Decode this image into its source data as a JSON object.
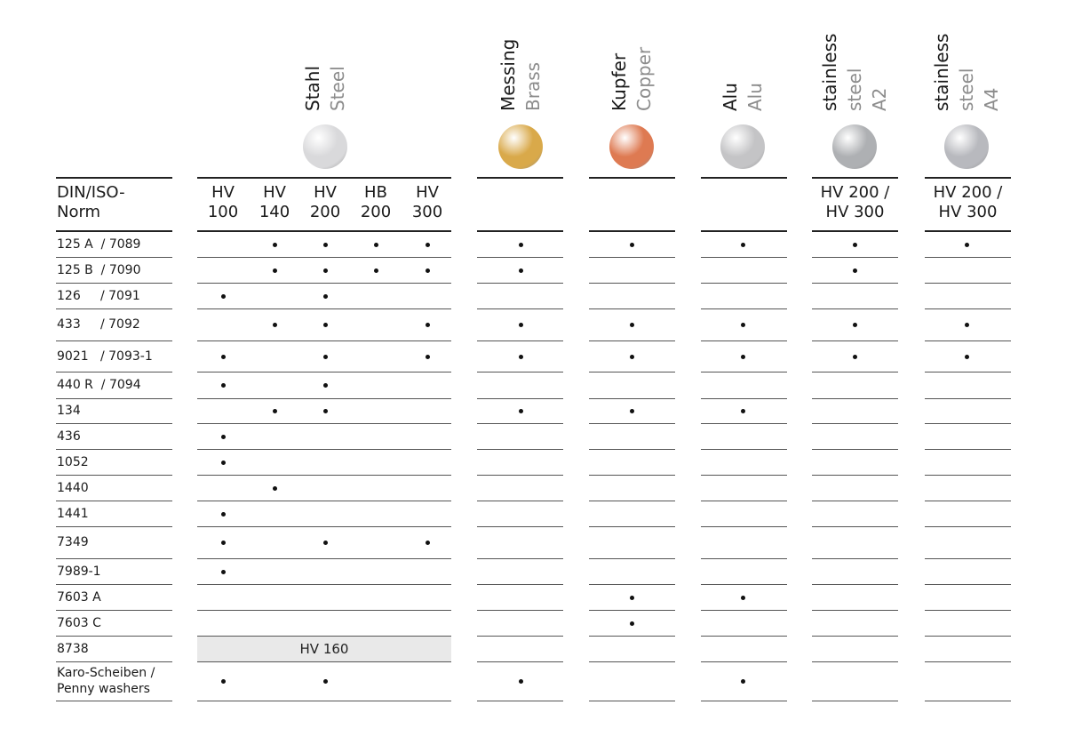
{
  "materials": [
    {
      "id": "steel",
      "de": "Stahl",
      "en": "Steel",
      "suffix": "",
      "color": "#d9d9db"
    },
    {
      "id": "brass",
      "de": "Messing",
      "en": "Brass",
      "suffix": "",
      "color": "#d9a94a"
    },
    {
      "id": "copper",
      "de": "Kupfer",
      "en": "Copper",
      "suffix": "",
      "color": "#de7a52"
    },
    {
      "id": "alu",
      "de": "Alu",
      "en": "Alu",
      "suffix": "",
      "color": "#c4c4c6"
    },
    {
      "id": "a2",
      "de": "stainless",
      "en": "steel",
      "suffix": "A2",
      "color": "#aeb0b3"
    },
    {
      "id": "a4",
      "de": "stainless",
      "en": "steel",
      "suffix": "A4",
      "color": "#b8b9be"
    }
  ],
  "norm_header": [
    "DIN/ISO-",
    "Norm"
  ],
  "hardness_columns": [
    {
      "line1": "HV",
      "line2": "100"
    },
    {
      "line1": "HV",
      "line2": "140"
    },
    {
      "line1": "HV",
      "line2": "200"
    },
    {
      "line1": "HB",
      "line2": "200"
    },
    {
      "line1": "HV",
      "line2": "300"
    }
  ],
  "stainless_hardness": {
    "line1": "HV 200 /",
    "line2": "HV 300"
  },
  "column_keys": [
    "hv100",
    "hv140",
    "hv200",
    "hb200",
    "hv300",
    "brass",
    "copper",
    "alu",
    "a2",
    "a4"
  ],
  "rows": [
    {
      "label": "125 A  / 7089",
      "marks": [
        0,
        1,
        1,
        1,
        1,
        1,
        1,
        1,
        1,
        1
      ]
    },
    {
      "label": "125 B  / 7090",
      "marks": [
        0,
        1,
        1,
        1,
        1,
        1,
        0,
        0,
        1,
        0
      ]
    },
    {
      "label": "126     / 7091",
      "marks": [
        1,
        0,
        1,
        0,
        0,
        0,
        0,
        0,
        0,
        0
      ]
    },
    {
      "label": "433     / 7092",
      "marks": [
        0,
        1,
        1,
        0,
        1,
        1,
        1,
        1,
        1,
        1
      ]
    },
    {
      "label": "9021   / 7093-1",
      "marks": [
        1,
        0,
        1,
        0,
        1,
        1,
        1,
        1,
        1,
        1
      ]
    },
    {
      "label": "440 R  / 7094",
      "marks": [
        1,
        0,
        1,
        0,
        0,
        0,
        0,
        0,
        0,
        0
      ]
    },
    {
      "label": "134",
      "marks": [
        0,
        1,
        1,
        0,
        0,
        1,
        1,
        1,
        0,
        0
      ]
    },
    {
      "label": "436",
      "marks": [
        1,
        0,
        0,
        0,
        0,
        0,
        0,
        0,
        0,
        0
      ]
    },
    {
      "label": "1052",
      "marks": [
        1,
        0,
        0,
        0,
        0,
        0,
        0,
        0,
        0,
        0
      ]
    },
    {
      "label": "1440",
      "marks": [
        0,
        1,
        0,
        0,
        0,
        0,
        0,
        0,
        0,
        0
      ]
    },
    {
      "label": "1441",
      "marks": [
        1,
        0,
        0,
        0,
        0,
        0,
        0,
        0,
        0,
        0
      ]
    },
    {
      "label": "7349",
      "marks": [
        1,
        0,
        1,
        0,
        1,
        0,
        0,
        0,
        0,
        0
      ]
    },
    {
      "label": "7989-1",
      "marks": [
        1,
        0,
        0,
        0,
        0,
        0,
        0,
        0,
        0,
        0
      ]
    },
    {
      "label": "7603 A",
      "marks": [
        0,
        0,
        0,
        0,
        0,
        0,
        1,
        1,
        0,
        0
      ]
    },
    {
      "label": "7603 C",
      "marks": [
        0,
        0,
        0,
        0,
        0,
        0,
        1,
        0,
        0,
        0
      ]
    },
    {
      "label": "8738",
      "marks": [
        0,
        0,
        0,
        0,
        0,
        0,
        0,
        0,
        0,
        0
      ],
      "steel_note": "HV 160"
    },
    {
      "label": "Karo-Scheiben /",
      "label2": "Penny washers",
      "marks": [
        1,
        0,
        1,
        0,
        0,
        1,
        0,
        1,
        0,
        0
      ]
    }
  ]
}
